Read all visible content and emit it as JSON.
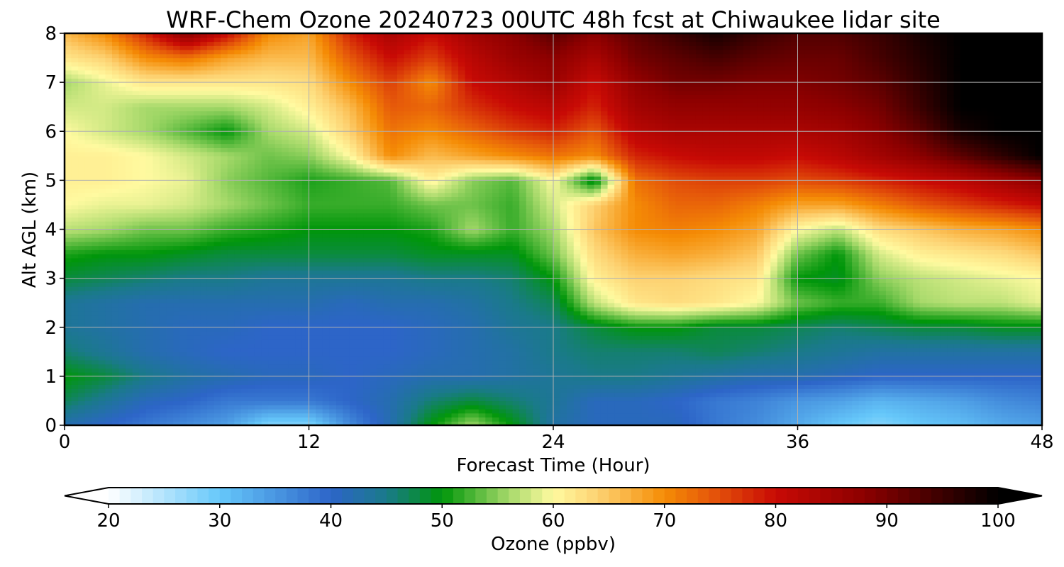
{
  "chart_data": {
    "type": "heatmap",
    "title": "WRF-Chem Ozone  20240723 00UTC 48h fcst at Chiwaukee lidar site",
    "xlabel": "Forecast Time (Hour)",
    "ylabel": "Alt AGL (km)",
    "xlim": [
      0,
      48
    ],
    "ylim": [
      0,
      8
    ],
    "xticks": [
      0,
      12,
      24,
      36,
      48
    ],
    "yticks": [
      0,
      1,
      2,
      3,
      4,
      5,
      6,
      7,
      8
    ],
    "grid": true,
    "x_hours": [
      0,
      2,
      4,
      6,
      8,
      10,
      12,
      14,
      16,
      18,
      20,
      22,
      24,
      26,
      28,
      30,
      32,
      34,
      36,
      38,
      40,
      42,
      44,
      46,
      48
    ],
    "y_km": [
      0,
      0.5,
      1,
      1.5,
      2,
      2.5,
      3,
      3.5,
      4,
      4.5,
      5,
      5.5,
      6,
      6.5,
      7,
      7.5,
      8
    ],
    "z_ozone_ppbv": [
      [
        42,
        40,
        38,
        36,
        34,
        28,
        28,
        36,
        42,
        50,
        56,
        50,
        43,
        41,
        41,
        41,
        38,
        36,
        33,
        30,
        28,
        30,
        31,
        33,
        34
      ],
      [
        47,
        44,
        41,
        40,
        38,
        38,
        38,
        40,
        42,
        46,
        48,
        46,
        44,
        41,
        41,
        40,
        38,
        37,
        35,
        34,
        32,
        33,
        34,
        36,
        37
      ],
      [
        50,
        48,
        45,
        43,
        42,
        41,
        41,
        40,
        41,
        42,
        42,
        43,
        44,
        45,
        45,
        44,
        43,
        42,
        42,
        41,
        40,
        40,
        40,
        40,
        40
      ],
      [
        46,
        44,
        42,
        41,
        40,
        40,
        40,
        40,
        40,
        41,
        42,
        43,
        45,
        46,
        46,
        46,
        47,
        46,
        45,
        44,
        43,
        43,
        43,
        43,
        43
      ],
      [
        44,
        43,
        42,
        41,
        41,
        40,
        40,
        40,
        40,
        41,
        42,
        44,
        45,
        48,
        50,
        50,
        48,
        48,
        47,
        46,
        47,
        48,
        48,
        49,
        49
      ],
      [
        44,
        43,
        42,
        42,
        42,
        42,
        42,
        41,
        42,
        42,
        43,
        45,
        47,
        57,
        62,
        63,
        62,
        60,
        54,
        52,
        52,
        56,
        57,
        57,
        59
      ],
      [
        48,
        47,
        46,
        45,
        45,
        44,
        44,
        44,
        44,
        45,
        45,
        46,
        50,
        61,
        64,
        64,
        63,
        62,
        50,
        49,
        55,
        57,
        58,
        59,
        60
      ],
      [
        51,
        50,
        50,
        49,
        48,
        48,
        48,
        48,
        48,
        49,
        49,
        49,
        54,
        63,
        67,
        68,
        67,
        65,
        54,
        50,
        58,
        61,
        62,
        63,
        65
      ],
      [
        57,
        56,
        54,
        54,
        52,
        51,
        50,
        50,
        50,
        51,
        56,
        52,
        56,
        65,
        70,
        71,
        70,
        68,
        60,
        57,
        63,
        65,
        67,
        68,
        70
      ],
      [
        60,
        59,
        59,
        58,
        56,
        54,
        52,
        52,
        52,
        54,
        54,
        52,
        58,
        64,
        70,
        73,
        73,
        71,
        68,
        68,
        71,
        74,
        76,
        78,
        80
      ],
      [
        61,
        61,
        60,
        59,
        55,
        53,
        51,
        52,
        53,
        61,
        55,
        53,
        60,
        48,
        72,
        75,
        76,
        76,
        75,
        76,
        78,
        80,
        82,
        85,
        88
      ],
      [
        61,
        61,
        60,
        58,
        56,
        54,
        55,
        60,
        70,
        66,
        68,
        70,
        72,
        70,
        78,
        80,
        81,
        81,
        80,
        82,
        85,
        88,
        92,
        96,
        100
      ],
      [
        60,
        58,
        56,
        53,
        50,
        56,
        58,
        64,
        72,
        70,
        73,
        76,
        78,
        74,
        82,
        84,
        84,
        84,
        84,
        85,
        88,
        92,
        98,
        100,
        100
      ],
      [
        58,
        58,
        56,
        56,
        56,
        58,
        61,
        66,
        74,
        73,
        77,
        80,
        82,
        78,
        85,
        87,
        87,
        87,
        87,
        88,
        90,
        95,
        100,
        100,
        100
      ],
      [
        56,
        59,
        62,
        62,
        62,
        62,
        63,
        70,
        76,
        70,
        80,
        83,
        86,
        80,
        87,
        90,
        90,
        89,
        89,
        90,
        92,
        96,
        100,
        100,
        100
      ],
      [
        62,
        64,
        70,
        72,
        68,
        66,
        66,
        74,
        80,
        76,
        82,
        86,
        88,
        84,
        90,
        92,
        94,
        92,
        91,
        91,
        94,
        97,
        100,
        100,
        100
      ],
      [
        66,
        70,
        78,
        88,
        80,
        70,
        68,
        78,
        84,
        80,
        85,
        88,
        92,
        88,
        92,
        95,
        98,
        95,
        93,
        93,
        95,
        98,
        100,
        100,
        100
      ]
    ],
    "colorbar": {
      "label": "Ozone  (ppbv)",
      "min": 20,
      "max": 100,
      "ticks": [
        20,
        30,
        40,
        50,
        60,
        70,
        80,
        90,
        100
      ],
      "extend": "both",
      "orientation": "horizontal",
      "placement": "bottom",
      "colors": [
        {
          "v": 20,
          "c": "#ffffff"
        },
        {
          "v": 30,
          "c": "#66c8fa"
        },
        {
          "v": 40,
          "c": "#2d65c8"
        },
        {
          "v": 45,
          "c": "#1a7a8a"
        },
        {
          "v": 50,
          "c": "#00960a"
        },
        {
          "v": 56,
          "c": "#a6d96a"
        },
        {
          "v": 60,
          "c": "#fffaa0"
        },
        {
          "v": 64,
          "c": "#fdd272"
        },
        {
          "v": 70,
          "c": "#f58c05"
        },
        {
          "v": 74,
          "c": "#e65a0a"
        },
        {
          "v": 80,
          "c": "#c80a05"
        },
        {
          "v": 88,
          "c": "#8c0000"
        },
        {
          "v": 100,
          "c": "#000000"
        }
      ]
    }
  }
}
